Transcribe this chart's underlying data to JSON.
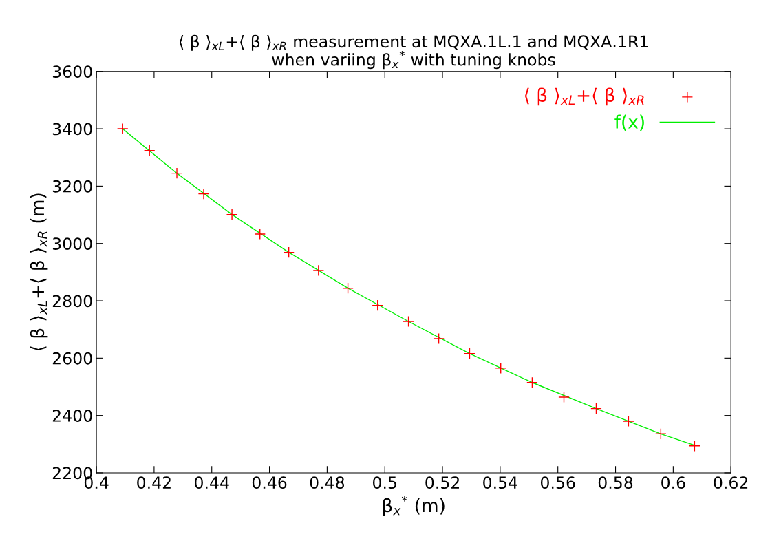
{
  "chart_data": {
    "type": "scatter",
    "title": "⟨ β ⟩$_{xL}$+⟨ β ⟩$_{xR}$ measurement at MQXA.1L.1 and MQXA.1R1\nwhen variing β$_{x}$$^{*}$ with tuning knobs",
    "xlabel": "β$_{x}$$^{*}$ (m)",
    "ylabel": "⟨ β ⟩$_{xL}$+⟨ β ⟩$_{xR}$ (m)",
    "x": [
      0.4091,
      0.4184,
      0.4279,
      0.4372,
      0.447,
      0.4567,
      0.4667,
      0.477,
      0.4872,
      0.4975,
      0.5082,
      0.5187,
      0.5294,
      0.5402,
      0.5511,
      0.5621,
      0.5733,
      0.5845,
      0.5957,
      0.6074
    ],
    "series": [
      {
        "name": "⟨ β ⟩$_{xL}$+⟨ β ⟩$_{xR}$",
        "marker": "cross",
        "color": "#ff0000",
        "values": [
          3400,
          3324,
          3245,
          3173,
          3101,
          3033,
          2969,
          2906,
          2844,
          2784,
          2728,
          2668,
          2616,
          2565,
          2515,
          2464,
          2424,
          2380,
          2336,
          2294
        ]
      },
      {
        "name": "f(x)",
        "type": "line",
        "color": "#00ee00",
        "line_style": "solid",
        "x": [
          0.4091,
          0.4279,
          0.447,
          0.4667,
          0.4872,
          0.5082,
          0.5294,
          0.5511,
          0.5733,
          0.5957,
          0.6074
        ],
        "values": [
          3400,
          3245,
          3101,
          2969,
          2844,
          2728,
          2616,
          2515,
          2424,
          2336,
          2296
        ]
      }
    ],
    "xlim": [
      0.4,
      0.62
    ],
    "xticks": [
      0.4,
      0.42,
      0.44,
      0.46,
      0.48,
      0.5,
      0.52,
      0.54,
      0.56,
      0.58,
      0.6,
      0.62
    ],
    "ylim": [
      2200,
      3600
    ],
    "yticks": [
      2200,
      2400,
      2600,
      2800,
      3000,
      3200,
      3400,
      3600
    ],
    "grid": false,
    "legend": "top right"
  }
}
